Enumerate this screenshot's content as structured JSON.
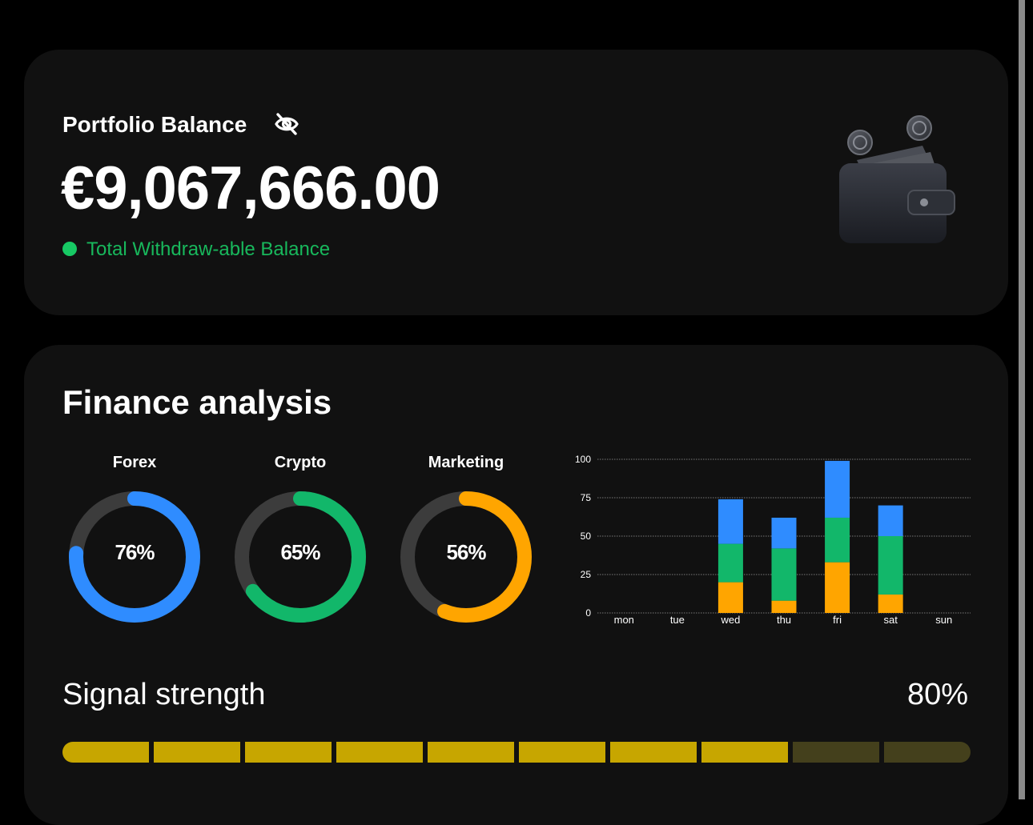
{
  "balance": {
    "title": "Portfolio Balance",
    "amount": "€9,067,666.00",
    "status_text": "Total Withdraw-able Balance",
    "hide_icon": "eye-slash-icon",
    "status_color": "#17c964"
  },
  "finance": {
    "title": "Finance analysis",
    "donuts": [
      {
        "label": "Forex",
        "percent": 76,
        "display": "76%",
        "color": "#2f8cff"
      },
      {
        "label": "Crypto",
        "percent": 65,
        "display": "65%",
        "color": "#12b76a"
      },
      {
        "label": "Marketing",
        "percent": 56,
        "display": "56%",
        "color": "#ffa500"
      }
    ]
  },
  "chart_data": {
    "type": "bar",
    "stacked": true,
    "categories": [
      "mon",
      "tue",
      "wed",
      "thu",
      "fri",
      "sat",
      "sun"
    ],
    "series": [
      {
        "values": [
          0,
          0,
          20,
          8,
          33,
          12,
          0
        ],
        "color": "#ffa500"
      },
      {
        "values": [
          0,
          0,
          25,
          34,
          29,
          38,
          0
        ],
        "color": "#12b76a"
      },
      {
        "values": [
          0,
          0,
          29,
          20,
          37,
          20,
          0
        ],
        "color": "#2f8cff"
      }
    ],
    "yticks": [
      0,
      25,
      50,
      75,
      100
    ],
    "ylim": [
      0,
      100
    ],
    "grid": true,
    "title": "",
    "xlabel": "",
    "ylabel": ""
  },
  "signal": {
    "label": "Signal strength",
    "value_text": "80%",
    "value": 80,
    "segments": 10,
    "active_color": "#c7a600",
    "inactive_color": "#44401c"
  }
}
